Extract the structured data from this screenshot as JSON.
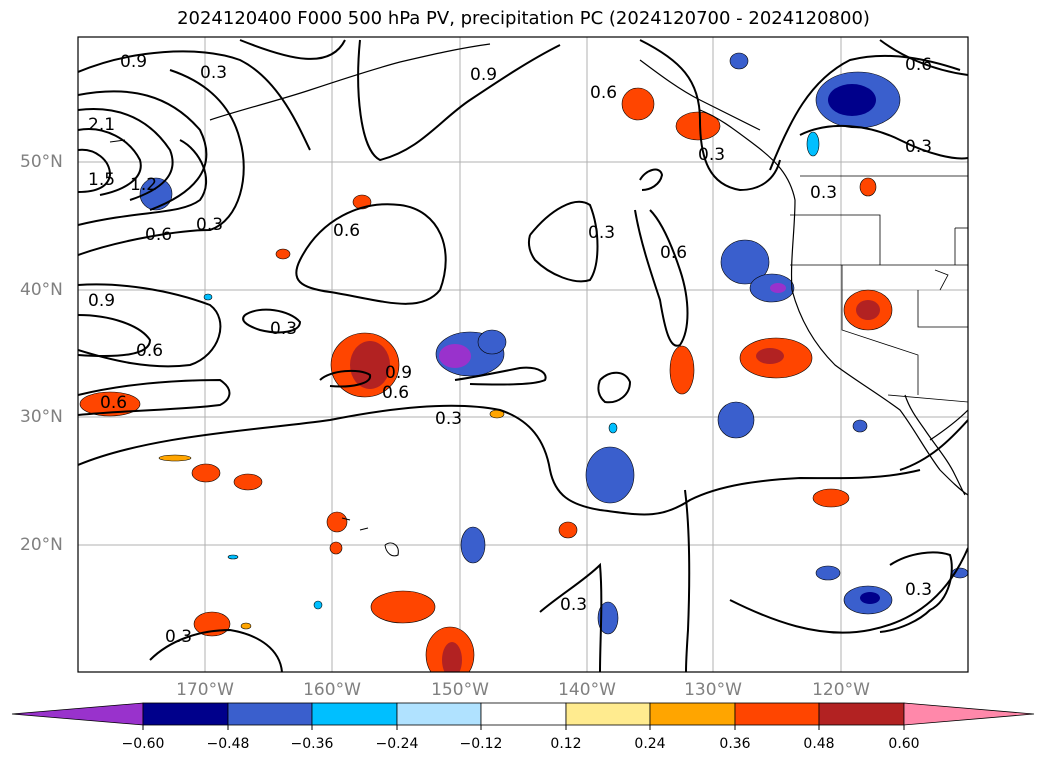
{
  "title": "2024120400 F000 500 hPa PV, precipitation PC (2024120700 - 2024120800)",
  "lon_labels": [
    "170°W",
    "160°W",
    "150°W",
    "140°W",
    "130°W",
    "120°W"
  ],
  "lat_labels": [
    "50°N",
    "40°N",
    "30°N",
    "20°N"
  ],
  "contour_labels": [
    "0.9",
    "0.3",
    "0.9",
    "0.6",
    "0.6",
    "0.3",
    "2.1",
    "1.5",
    "1.2",
    "0.6",
    "0.3",
    "0.6",
    "0.3",
    "0.6",
    "0.3",
    "0.9",
    "0.3",
    "0.6",
    "0.6",
    "0.9",
    "0.6",
    "0.3",
    "0.3",
    "0.3",
    "0.3",
    "0.3"
  ],
  "colorbar": {
    "ticks": [
      "−0.60",
      "−0.48",
      "−0.36",
      "−0.24",
      "−0.12",
      "0.12",
      "0.24",
      "0.36",
      "0.48",
      "0.60"
    ],
    "colors": [
      "#9932cc",
      "#00008b",
      "#3a5fcd",
      "#00bfff",
      "#b0e2ff",
      "#ffffff",
      "#ffeb8f",
      "#ffa500",
      "#ff4500",
      "#b22222",
      "#ff88aa"
    ]
  },
  "colors": {
    "neg_strong": "#9932cc",
    "neg_dark": "#00008b",
    "neg_mid": "#3a5fcd",
    "neg_light": "#00bfff",
    "pos_light": "#ffeb8f",
    "pos_mid": "#ffa500",
    "pos_orange": "#ff4500",
    "pos_dark": "#b22222",
    "contour": "#000000"
  }
}
